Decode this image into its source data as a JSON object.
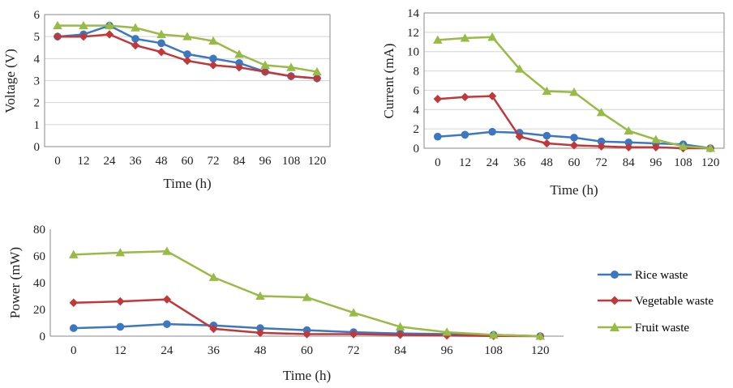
{
  "colors": {
    "rice": "#3c77c2",
    "vegetable": "#c0383a",
    "fruit": "#98bb45",
    "grid": "#d4d4d4",
    "axis": "#8a8a8a"
  },
  "legend": {
    "position": "right",
    "items": [
      "Rice waste",
      "Vegetable waste",
      "Fruit waste"
    ]
  },
  "chart_data": [
    {
      "type": "line",
      "xlabel": "Time (h)",
      "ylabel": "Voltage (V)",
      "x": [
        0,
        12,
        24,
        36,
        48,
        60,
        72,
        84,
        96,
        108,
        120
      ],
      "ylim": [
        0,
        6
      ],
      "yticks": [
        0,
        1,
        2,
        3,
        4,
        5,
        6
      ],
      "grid": true,
      "series": [
        {
          "name": "Rice waste",
          "values": [
            5.0,
            5.1,
            5.5,
            4.9,
            4.7,
            4.2,
            4.0,
            3.8,
            3.4,
            3.2,
            3.1
          ]
        },
        {
          "name": "Vegetable waste",
          "values": [
            5.0,
            5.0,
            5.1,
            4.6,
            4.3,
            3.9,
            3.7,
            3.6,
            3.4,
            3.2,
            3.1
          ]
        },
        {
          "name": "Fruit waste",
          "values": [
            5.5,
            5.5,
            5.5,
            5.4,
            5.1,
            5.0,
            4.8,
            4.2,
            3.7,
            3.6,
            3.4
          ]
        }
      ]
    },
    {
      "type": "line",
      "xlabel": "Time (h)",
      "ylabel": "Current (mA)",
      "x": [
        0,
        12,
        24,
        36,
        48,
        60,
        72,
        84,
        96,
        108,
        120
      ],
      "ylim": [
        0,
        14
      ],
      "yticks": [
        0,
        2,
        4,
        6,
        8,
        10,
        12,
        14
      ],
      "grid": true,
      "series": [
        {
          "name": "Rice waste",
          "values": [
            1.2,
            1.4,
            1.7,
            1.6,
            1.3,
            1.1,
            0.7,
            0.6,
            0.5,
            0.4,
            0.0
          ]
        },
        {
          "name": "Vegetable waste",
          "values": [
            5.1,
            5.3,
            5.4,
            1.2,
            0.5,
            0.3,
            0.2,
            0.1,
            0.1,
            0.0,
            0.0
          ]
        },
        {
          "name": "Fruit waste",
          "values": [
            11.2,
            11.4,
            11.5,
            8.2,
            5.9,
            5.8,
            3.7,
            1.8,
            0.9,
            0.2,
            0.0
          ]
        }
      ]
    },
    {
      "type": "line",
      "xlabel": "Time (h)",
      "ylabel": "Power (mW)",
      "x": [
        0,
        12,
        24,
        36,
        48,
        60,
        72,
        84,
        96,
        108,
        120
      ],
      "ylim": [
        0,
        80
      ],
      "yticks": [
        0,
        20,
        40,
        60,
        80
      ],
      "grid": false,
      "series": [
        {
          "name": "Rice waste",
          "values": [
            6,
            7,
            9,
            8,
            6,
            4.5,
            3,
            2,
            1.5,
            1,
            0
          ]
        },
        {
          "name": "Vegetable waste",
          "values": [
            25,
            26,
            27.5,
            5.5,
            2.5,
            1.5,
            1.5,
            1,
            0.5,
            0.2,
            0
          ]
        },
        {
          "name": "Fruit waste",
          "values": [
            61,
            62.5,
            63.5,
            44,
            30,
            29,
            17.5,
            7,
            3,
            1,
            0
          ]
        }
      ]
    }
  ]
}
